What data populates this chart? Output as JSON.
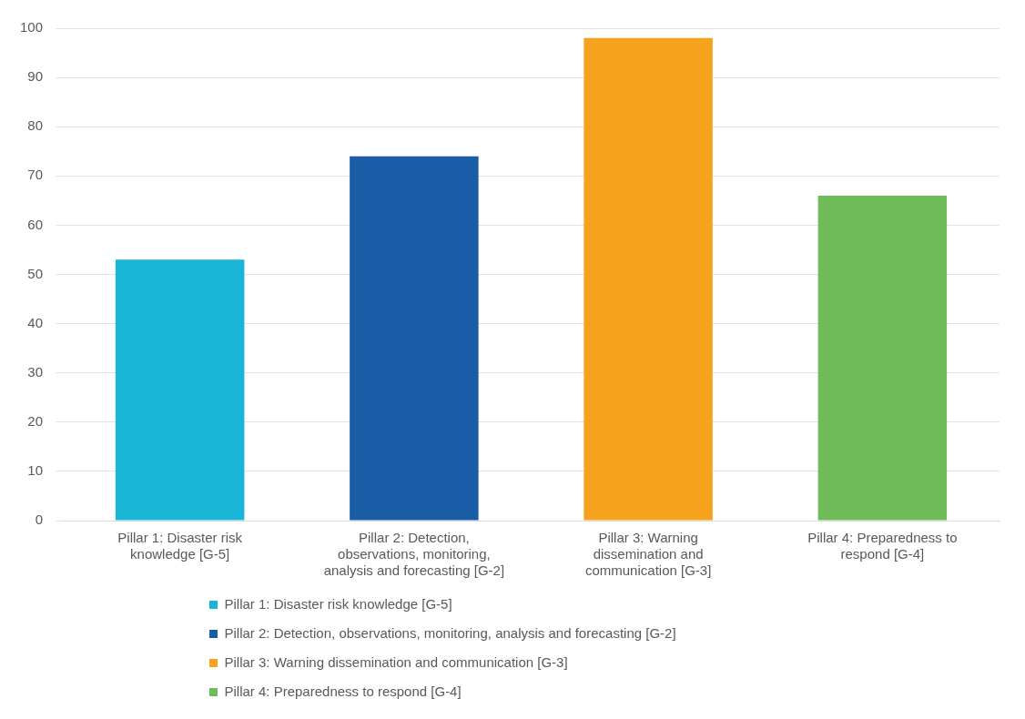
{
  "chart_data": {
    "type": "bar",
    "categories": [
      "Pillar 1: Disaster risk knowledge [G-5]",
      "Pillar 2: Detection, observations, monitoring, analysis and forecasting [G-2]",
      "Pillar 3: Warning dissemination and communication [G-3]",
      "Pillar 4: Preparedness to respond [G-4]"
    ],
    "series": [
      {
        "name": "Pillar 1: Disaster risk knowledge [G-5]",
        "color": "#1ab4d6",
        "values": [
          53,
          null,
          null,
          null
        ]
      },
      {
        "name": "Pillar 2: Detection, observations, monitoring, analysis and forecasting [G-2]",
        "color": "#1a5ca6",
        "values": [
          null,
          74,
          null,
          null
        ]
      },
      {
        "name": "Pillar 3: Warning dissemination and communication [G-3]",
        "color": "#f7a21f",
        "values": [
          null,
          null,
          98,
          null
        ]
      },
      {
        "name": "Pillar 4: Preparedness to respond [G-4]",
        "color": "#6fbb5a",
        "values": [
          null,
          null,
          null,
          66
        ]
      }
    ],
    "ylim": [
      0,
      100
    ],
    "yticks": [
      0,
      10,
      20,
      30,
      40,
      50,
      60,
      70,
      80,
      90,
      100
    ],
    "grid": "y",
    "legend": "bottom"
  }
}
